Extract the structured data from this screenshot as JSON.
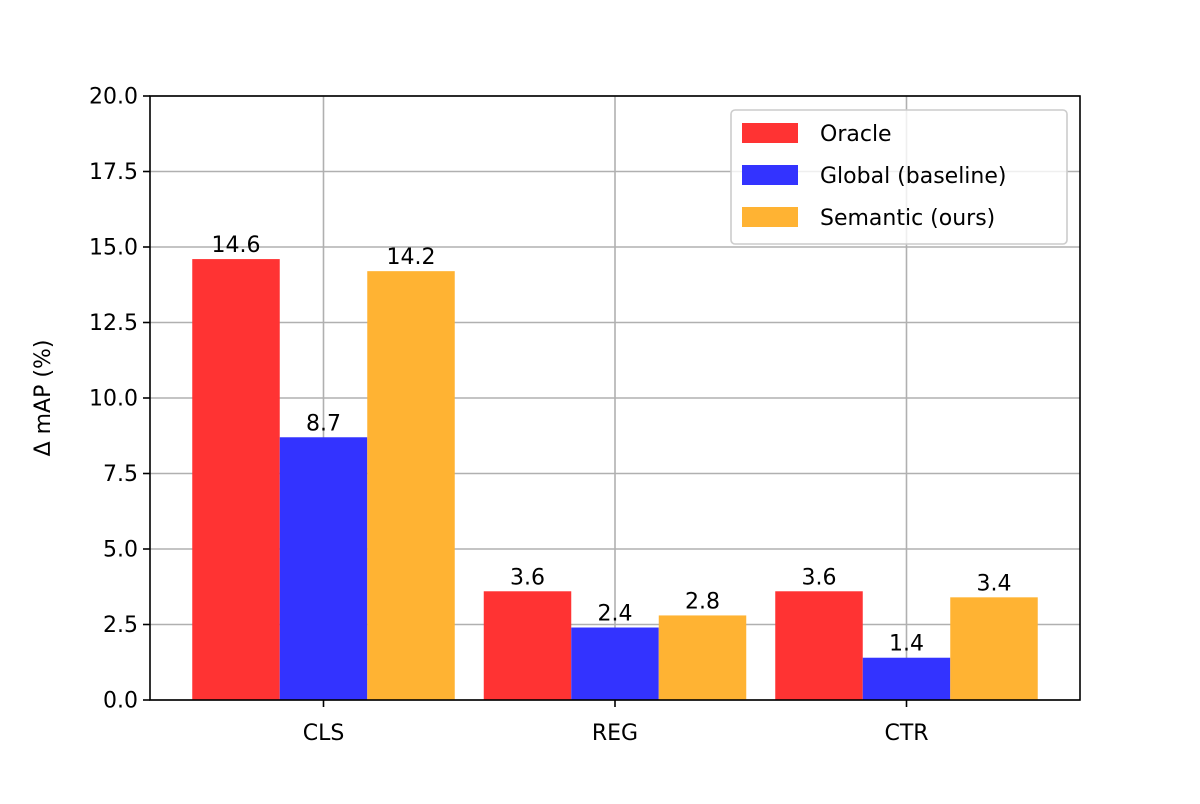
{
  "chart_data": {
    "type": "bar",
    "title": "",
    "xlabel": "",
    "ylabel": "Δ mAP (%)",
    "categories": [
      "CLS",
      "REG",
      "CTR"
    ],
    "series": [
      {
        "name": "Oracle",
        "values": [
          14.6,
          3.6,
          3.6
        ],
        "color": "#ff3333",
        "labels": [
          "14.6",
          "3.6",
          "3.6"
        ]
      },
      {
        "name": "Global (baseline)",
        "values": [
          8.7,
          2.4,
          1.4
        ],
        "color": "#3333ff",
        "labels": [
          "8.7",
          "2.4",
          "1.4"
        ]
      },
      {
        "name": "Semantic (ours)",
        "values": [
          14.2,
          2.8,
          3.4
        ],
        "color": "#ffb333",
        "labels": [
          "14.2",
          "2.8",
          "3.4"
        ]
      }
    ],
    "ylim": [
      0,
      20
    ],
    "yticks": [
      0.0,
      2.5,
      5.0,
      7.5,
      10.0,
      12.5,
      15.0,
      17.5,
      20.0
    ],
    "ytick_labels": [
      "0.0",
      "2.5",
      "5.0",
      "7.5",
      "10.0",
      "12.5",
      "15.0",
      "17.5",
      "20.0"
    ],
    "grid": true,
    "legend_position": "top-right"
  }
}
